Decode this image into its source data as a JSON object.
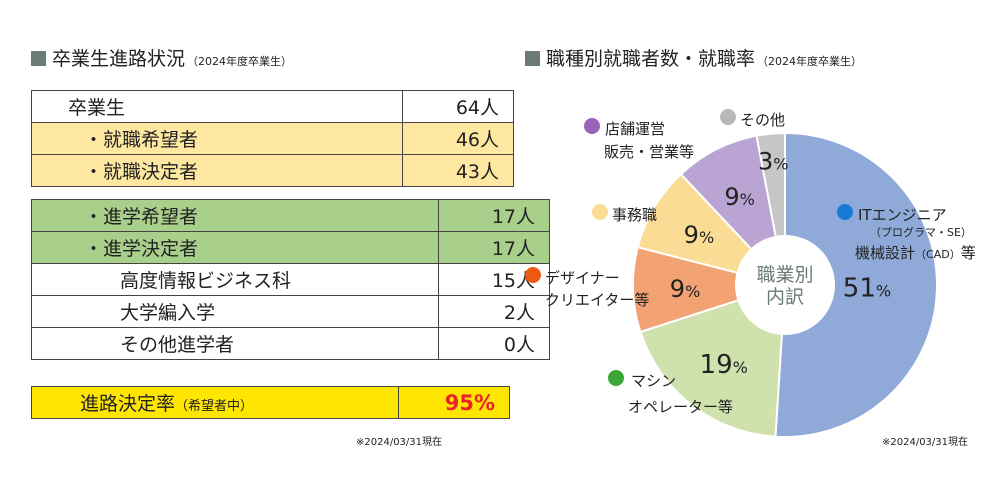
{
  "left": {
    "title": "卒業生進路状況",
    "title_sub": "（2024年度卒業生）",
    "rows_a": [
      {
        "label": "卒業生",
        "value": "64人",
        "style": "white",
        "indent": 0
      },
      {
        "label": "・就職希望者",
        "value": "46人",
        "style": "yellow",
        "indent": 1
      },
      {
        "label": "・就職決定者",
        "value": "43人",
        "style": "yellow",
        "indent": 1
      }
    ],
    "rows_b": [
      {
        "label": "・進学希望者",
        "value": "17人",
        "style": "green",
        "indent": 1
      },
      {
        "label": "・進学決定者",
        "value": "17人",
        "style": "green",
        "indent": 1
      },
      {
        "label": "高度情報ビジネス科",
        "value": "15人",
        "style": "white",
        "indent": 2
      },
      {
        "label": "大学編入学",
        "value": "2人",
        "style": "white",
        "indent": 2
      },
      {
        "label": "その他進学者",
        "value": "0人",
        "style": "white",
        "indent": 2
      }
    ],
    "rate": {
      "label": "進路決定率",
      "label_sub": "（希望者中）",
      "value": "95%"
    },
    "note": "※2024/03/31現在"
  },
  "right": {
    "title": "職種別就職者数・就職率",
    "title_sub": "（2024年度卒業生）",
    "note": "※2024/03/31現在"
  },
  "chart_data": {
    "type": "pie",
    "center_label": [
      "職業別",
      "内訳"
    ],
    "slices": [
      {
        "name": "ITエンジニア",
        "name_sub": "（プログラマ・SE）",
        "name_line2": "機械設計",
        "name_line2_sub": "（CAD）",
        "name_line2_tail": "等",
        "value": 51,
        "color": "#8faad8",
        "dot": "#1a7ad4"
      },
      {
        "name": "マシン",
        "name_line2": "オペレーター等",
        "value": 19,
        "color": "#cfe2ae",
        "dot": "#3aa635"
      },
      {
        "name": "デザイナー",
        "name_line2": "クリエイター等",
        "value": 9,
        "color": "#f3a274",
        "dot": "#ee5a12"
      },
      {
        "name": "事務職",
        "value": 9,
        "color": "#fbdc94",
        "dot": "#fbdc94"
      },
      {
        "name": "店舗運営",
        "name_line2": "販売・営業等",
        "value": 9,
        "color": "#baa4d4",
        "dot": "#9a63b8"
      },
      {
        "name": "その他",
        "value": 3,
        "color": "#c6c6c6",
        "dot": "#b8b8b8"
      }
    ]
  }
}
